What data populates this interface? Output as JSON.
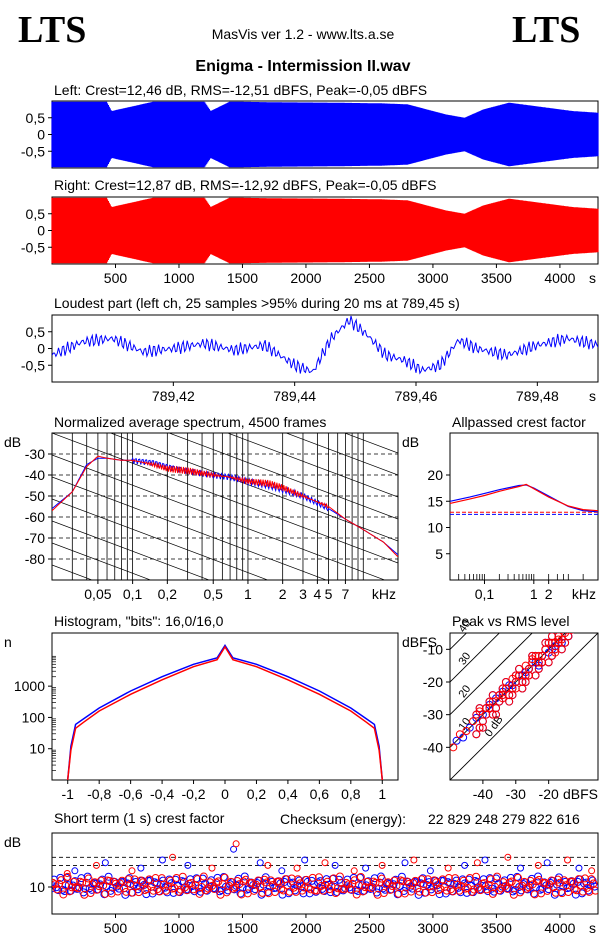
{
  "header": {
    "logo_left": "LTS",
    "logo_right": "LTS",
    "app_title": "MasVis ver 1.2 - www.lts.a.se",
    "file_title": "Enigma - Intermission II.wav"
  },
  "colors": {
    "left": "#0000ff",
    "right": "#ff0000",
    "axis": "#000000"
  },
  "chart_data": [
    {
      "id": "left-waveform",
      "type": "area",
      "title": "Left: Crest=12,46 dB, RMS=-12,51 dBFS, Peak=-0,05 dBFS",
      "xlim": [
        0,
        4300
      ],
      "ylim": [
        -1,
        1
      ],
      "yticks": [
        "0.5",
        "0",
        "-0.5"
      ],
      "ytick_labels": [
        "0,5",
        "0",
        "-0,5"
      ],
      "xticks": [],
      "xtick_labels": [],
      "series": [
        {
          "color": "#0000ff",
          "envelope": [
            [
              0,
              0.98
            ],
            [
              50,
              0.98
            ],
            [
              430,
              0.98
            ],
            [
              470,
              0.7
            ],
            [
              800,
              0.98
            ],
            [
              1200,
              0.98
            ],
            [
              1250,
              0.7
            ],
            [
              1400,
              0.98
            ],
            [
              1800,
              0.96
            ],
            [
              2200,
              0.95
            ],
            [
              2600,
              0.93
            ],
            [
              2800,
              0.9
            ],
            [
              3100,
              0.6
            ],
            [
              3250,
              0.5
            ],
            [
              3400,
              0.75
            ],
            [
              3600,
              0.95
            ],
            [
              3900,
              0.8
            ],
            [
              4100,
              0.7
            ],
            [
              4300,
              0.65
            ]
          ]
        }
      ]
    },
    {
      "id": "right-waveform",
      "type": "area",
      "title": "Right: Crest=12,87 dB, RMS=-12,92 dBFS, Peak=-0,05 dBFS",
      "xlim": [
        0,
        4300
      ],
      "ylim": [
        -1,
        1
      ],
      "yticks": [
        "0.5",
        "0",
        "-0.5"
      ],
      "ytick_labels": [
        "0,5",
        "0",
        "-0,5"
      ],
      "xticks": [
        500,
        1000,
        1500,
        2000,
        2500,
        3000,
        3500,
        4000
      ],
      "xtick_labels": [
        "500",
        "1000",
        "1500",
        "2000",
        "2500",
        "3000",
        "3500",
        "4000"
      ],
      "xunit": "s",
      "series": [
        {
          "color": "#ff0000",
          "envelope": [
            [
              0,
              0.98
            ],
            [
              430,
              0.98
            ],
            [
              470,
              0.7
            ],
            [
              800,
              0.98
            ],
            [
              1200,
              0.98
            ],
            [
              1250,
              0.7
            ],
            [
              1400,
              0.98
            ],
            [
              1800,
              0.96
            ],
            [
              2200,
              0.95
            ],
            [
              2600,
              0.93
            ],
            [
              2800,
              0.9
            ],
            [
              3100,
              0.6
            ],
            [
              3250,
              0.5
            ],
            [
              3400,
              0.75
            ],
            [
              3600,
              0.95
            ],
            [
              3900,
              0.8
            ],
            [
              4100,
              0.7
            ],
            [
              4300,
              0.65
            ]
          ]
        }
      ]
    },
    {
      "id": "loudest-part",
      "type": "line",
      "title": "Loudest part (left  ch, 25 samples >95% during 20 ms at 789,45 s)",
      "xlim": [
        789.4,
        789.49
      ],
      "ylim": [
        -1,
        1
      ],
      "yticks": [
        "0.5",
        "0",
        "-0.5"
      ],
      "ytick_labels": [
        "0,5",
        "0",
        "-0,5"
      ],
      "xticks": [
        789.42,
        789.44,
        789.46,
        789.48
      ],
      "xtick_labels": [
        "789,42",
        "789,44",
        "789,46",
        "789,48"
      ],
      "xunit": "s",
      "series": [
        {
          "color": "#0000ff",
          "x": [
            789.4,
            789.405,
            789.41,
            789.415,
            789.42,
            789.425,
            789.43,
            789.435,
            789.44,
            789.443,
            789.446,
            789.449,
            789.452,
            789.455,
            789.458,
            789.461,
            789.464,
            789.467,
            789.47,
            789.475,
            789.48,
            789.485,
            789.49
          ],
          "y": [
            -0.2,
            0.2,
            0.3,
            -0.1,
            0.0,
            0.15,
            -0.05,
            0.1,
            -0.5,
            -0.7,
            0.3,
            0.85,
            0.4,
            -0.2,
            -0.35,
            -0.65,
            -0.5,
            0.25,
            0.0,
            -0.2,
            0.1,
            0.3,
            0.1
          ]
        }
      ]
    },
    {
      "id": "spectrum",
      "type": "line",
      "title": "Normalized average spectrum, 4500 frames",
      "ylabel": "dB",
      "xscale": "log",
      "xlim": [
        0.02,
        20
      ],
      "ylim": [
        -90,
        -20
      ],
      "yticks": [
        -30,
        -40,
        -50,
        -60,
        -70,
        -80
      ],
      "ytick_labels": [
        "-30",
        "-40",
        "-50",
        "-60",
        "-70",
        "-80"
      ],
      "xticks": [
        0.05,
        0.1,
        0.2,
        0.5,
        1,
        2,
        3,
        4,
        5,
        7
      ],
      "xtick_labels": [
        "0,05",
        "0,1",
        "0,2",
        "0,5",
        "1",
        "2",
        "3",
        "4",
        "5",
        "7"
      ],
      "xunit": "kHz",
      "series": [
        {
          "color": "#0000ff",
          "x": [
            0.02,
            0.03,
            0.04,
            0.05,
            0.06,
            0.08,
            0.1,
            0.15,
            0.2,
            0.3,
            0.5,
            0.7,
            1,
            1.5,
            2,
            3,
            5,
            7,
            10,
            15,
            20
          ],
          "y": [
            -56,
            -48,
            -35,
            -32,
            -32,
            -33,
            -33,
            -34,
            -36,
            -38,
            -40,
            -41,
            -43,
            -45,
            -47,
            -50,
            -56,
            -61,
            -66,
            -72,
            -78
          ]
        },
        {
          "color": "#ff0000",
          "x": [
            0.02,
            0.03,
            0.04,
            0.05,
            0.06,
            0.08,
            0.1,
            0.15,
            0.2,
            0.3,
            0.5,
            0.7,
            1,
            1.5,
            2,
            3,
            5,
            7,
            10,
            15,
            20
          ],
          "y": [
            -57,
            -48,
            -36,
            -31,
            -32,
            -33,
            -33,
            -35,
            -37,
            -38,
            -40,
            -41,
            -43,
            -44,
            -46,
            -50,
            -55,
            -61,
            -66,
            -72,
            -79
          ]
        }
      ]
    },
    {
      "id": "allpassed-crest",
      "type": "line",
      "title": "Allpassed crest factor",
      "ylabel": "dB",
      "xscale": "log",
      "xlim": [
        0.02,
        20
      ],
      "ylim": [
        0,
        28
      ],
      "yticks": [
        20,
        15,
        10,
        5
      ],
      "ytick_labels": [
        "20",
        "15",
        "10",
        "5"
      ],
      "xticks": [
        0.1,
        1,
        2
      ],
      "xtick_labels": [
        "0,1",
        "1",
        "2"
      ],
      "xunit": "kHz",
      "ref_lines": [
        {
          "color": "#0000ff",
          "value": 12.5
        },
        {
          "color": "#ff0000",
          "value": 12.9
        }
      ],
      "series": [
        {
          "color": "#0000ff",
          "x": [
            0.02,
            0.05,
            0.1,
            0.2,
            0.5,
            0.7,
            1,
            2,
            5,
            10,
            20
          ],
          "y": [
            15,
            15.8,
            16.5,
            17.2,
            18,
            18.1,
            17.5,
            16,
            14,
            13.2,
            13
          ]
        },
        {
          "color": "#ff0000",
          "x": [
            0.02,
            0.05,
            0.1,
            0.2,
            0.5,
            0.7,
            1,
            2,
            5,
            10,
            20
          ],
          "y": [
            14.6,
            15.4,
            16.1,
            16.9,
            17.8,
            18.2,
            17.4,
            15.8,
            14.1,
            13.4,
            13.2
          ]
        }
      ]
    },
    {
      "id": "histogram",
      "type": "line",
      "title": "Histogram, \"bits\": 16,0/16,0",
      "ylabel": "n",
      "yscale": "log",
      "xlim": [
        -1.1,
        1.1
      ],
      "ylim": [
        1,
        50000
      ],
      "yticks": [
        1000,
        100,
        10
      ],
      "ytick_labels": [
        "1000",
        "100",
        "10"
      ],
      "xticks": [
        -1,
        -0.8,
        -0.6,
        -0.4,
        -0.2,
        0,
        0.2,
        0.4,
        0.6,
        0.8,
        1
      ],
      "xtick_labels": [
        "-1",
        "-0,8",
        "-0,6",
        "-0,4",
        "-0,2",
        "0",
        "0,2",
        "0,4",
        "0,6",
        "0,8",
        "1"
      ],
      "series": [
        {
          "color": "#0000ff",
          "x": [
            -1,
            -0.98,
            -0.95,
            -0.9,
            -0.8,
            -0.6,
            -0.4,
            -0.2,
            -0.05,
            0,
            0.05,
            0.2,
            0.4,
            0.6,
            0.8,
            0.9,
            0.95,
            0.98,
            1
          ],
          "y": [
            1,
            12,
            60,
            90,
            200,
            700,
            2000,
            5000,
            8000,
            20000,
            8000,
            5000,
            2000,
            700,
            200,
            90,
            60,
            12,
            1
          ]
        },
        {
          "color": "#ff0000",
          "x": [
            -1,
            -0.98,
            -0.95,
            -0.9,
            -0.8,
            -0.6,
            -0.4,
            -0.2,
            -0.05,
            0,
            0.05,
            0.2,
            0.4,
            0.6,
            0.8,
            0.9,
            0.95,
            0.98,
            1
          ],
          "y": [
            1,
            9,
            45,
            70,
            160,
            550,
            1600,
            4200,
            7000,
            18000,
            7000,
            4200,
            1600,
            550,
            160,
            70,
            45,
            9,
            1
          ]
        }
      ]
    },
    {
      "id": "peak-vs-rms",
      "type": "scatter",
      "title": "Peak vs RMS level",
      "ylabel": "dBFS",
      "xlabel": "dBFS",
      "xlim": [
        -50,
        -5
      ],
      "ylim": [
        -50,
        -5
      ],
      "yticks": [
        -10,
        -20,
        -30,
        -40
      ],
      "ytick_labels": [
        "-10",
        "-20",
        "-30",
        "-40"
      ],
      "xticks": [
        -40,
        -30,
        -20
      ],
      "xtick_labels": [
        "-40",
        "-30",
        "-20"
      ],
      "diagonal_labels": [
        "40",
        "30",
        "20",
        "10",
        "0 dB"
      ],
      "series": [
        {
          "color": "#0000ff",
          "x": [
            -48,
            -46,
            -44,
            -42,
            -40,
            -38,
            -36,
            -34,
            -32,
            -30,
            -28,
            -26,
            -24,
            -22,
            -20,
            -18,
            -16,
            -14,
            -35,
            -31,
            -27,
            -23,
            -19
          ],
          "y": [
            -38,
            -37,
            -34,
            -31,
            -30,
            -27,
            -25,
            -23,
            -21,
            -20,
            -18,
            -16,
            -14,
            -12,
            -11,
            -9,
            -8,
            -6,
            -26,
            -21,
            -17,
            -15,
            -10
          ]
        },
        {
          "color": "#ff0000",
          "x": [
            -49,
            -47,
            -45,
            -43,
            -41,
            -39,
            -37,
            -35,
            -33,
            -31,
            -29,
            -27,
            -25,
            -23,
            -21,
            -19,
            -17,
            -15,
            -34,
            -30,
            -26,
            -22,
            -18,
            -16
          ],
          "y": [
            -40,
            -36,
            -35,
            -32,
            -29,
            -28,
            -26,
            -24,
            -22,
            -19,
            -18,
            -15,
            -13,
            -12,
            -10,
            -8,
            -7,
            -5,
            -25,
            -22,
            -18,
            -14,
            -11,
            -7
          ]
        }
      ]
    },
    {
      "id": "short-term-crest",
      "type": "scatter",
      "title": "Short term (1 s) crest factor",
      "ylabel": "dB",
      "xlim": [
        0,
        4300
      ],
      "ylim": [
        0,
        30
      ],
      "yticks": [
        10
      ],
      "ytick_labels": [
        "10"
      ],
      "ref_lines": [
        {
          "value": 21
        },
        {
          "value": 18
        }
      ],
      "xticks": [
        500,
        1000,
        1500,
        2000,
        2500,
        3000,
        3500,
        4000
      ],
      "xtick_labels": [
        "500",
        "1000",
        "1500",
        "2000",
        "2500",
        "3000",
        "3500",
        "4000"
      ],
      "xunit": "s",
      "series": [
        {
          "color": "#0000ff",
          "outliers": [
            [
              180,
              16
            ],
            [
              420,
              19
            ],
            [
              700,
              17
            ],
            [
              870,
              20
            ],
            [
              1070,
              18
            ],
            [
              1430,
              24
            ],
            [
              1640,
              19
            ],
            [
              1810,
              16
            ],
            [
              1990,
              20
            ],
            [
              2230,
              18
            ],
            [
              2470,
              17
            ],
            [
              2780,
              19
            ],
            [
              2980,
              16
            ],
            [
              3250,
              18
            ],
            [
              3410,
              20
            ],
            [
              3690,
              17
            ],
            [
              3900,
              19
            ],
            [
              4150,
              17
            ]
          ]
        },
        {
          "color": "#ff0000",
          "outliers": [
            [
              120,
              15
            ],
            [
              350,
              18
            ],
            [
              630,
              16
            ],
            [
              950,
              21
            ],
            [
              1260,
              17
            ],
            [
              1450,
              26
            ],
            [
              1700,
              18
            ],
            [
              1930,
              17
            ],
            [
              2150,
              19
            ],
            [
              2380,
              16
            ],
            [
              2600,
              18
            ],
            [
              2850,
              20
            ],
            [
              3120,
              17
            ],
            [
              3350,
              19
            ],
            [
              3590,
              21
            ],
            [
              3830,
              18
            ],
            [
              4060,
              20
            ],
            [
              4250,
              16
            ]
          ]
        }
      ]
    }
  ],
  "checksum": {
    "label": "Checksum (energy):",
    "value": "22 829 248 279 822 616"
  }
}
